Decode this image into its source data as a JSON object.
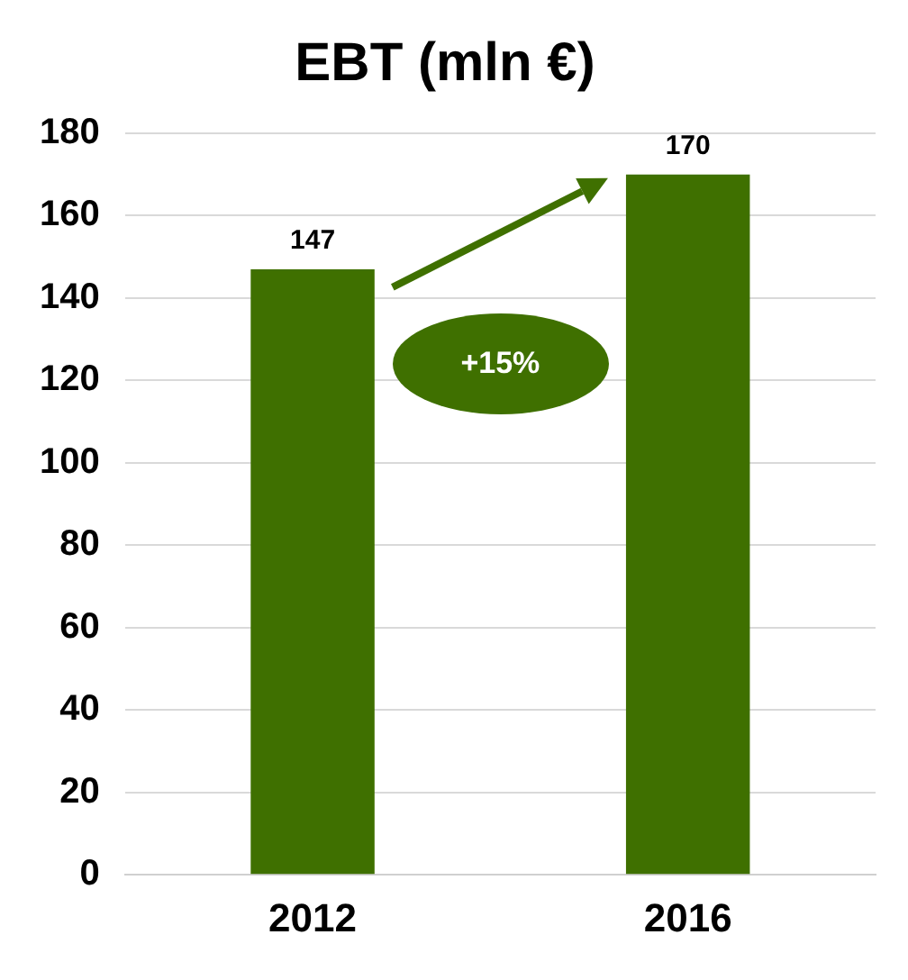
{
  "chart_data": {
    "type": "bar",
    "title": "EBT (mln €)",
    "categories": [
      "2012",
      "2016"
    ],
    "values": [
      147,
      170
    ],
    "color": "#3f7000",
    "ylim": [
      0,
      180
    ],
    "yticks": [
      0,
      20,
      40,
      60,
      80,
      100,
      120,
      140,
      160,
      180
    ],
    "grid": "y",
    "data_labels": true,
    "annotations": [
      "+15%"
    ]
  }
}
